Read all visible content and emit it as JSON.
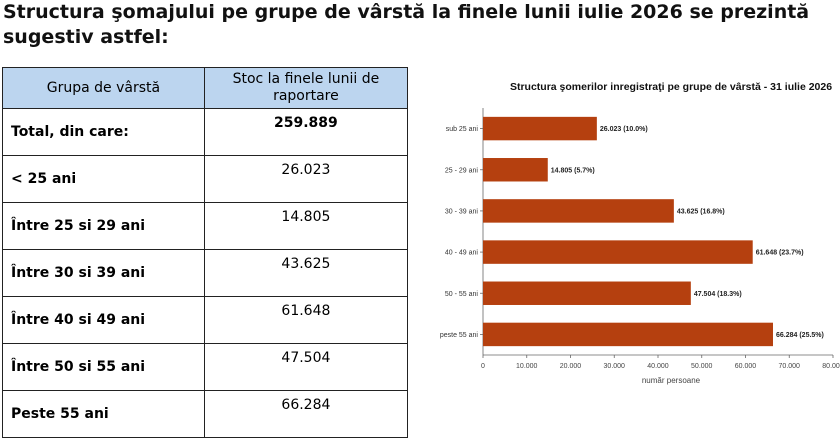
{
  "heading": "Structura şomajului pe grupe de vârstă la finele lunii iulie 2026 se prezintă sugestiv astfel:",
  "table": {
    "headers": [
      "Grupa de vârstă",
      "Stoc la finele lunii de raportare"
    ],
    "rows": [
      {
        "label": "Total, din care:",
        "value": "259.889"
      },
      {
        "label": "< 25 ani",
        "value": "26.023"
      },
      {
        "label": "Între 25 si 29 ani",
        "value": "14.805"
      },
      {
        "label": "Între 30 si 39 ani",
        "value": "43.625"
      },
      {
        "label": "Între 40 si 49 ani",
        "value": "61.648"
      },
      {
        "label": "Între 50 si 55 ani",
        "value": "47.504"
      },
      {
        "label": "Peste 55 ani",
        "value": "66.284"
      }
    ]
  },
  "chart_data": {
    "type": "bar",
    "orientation": "horizontal",
    "title": "Structura şomerilor inregistraţi pe grupe de vârstă - 31 iulie 2026",
    "xlabel": "număr persoane",
    "ylabel": "",
    "categories": [
      "sub 25 ani",
      "25 - 29 ani",
      "30 - 39 ani",
      "40 - 49 ani",
      "50 - 55 ani",
      "peste 55 ani"
    ],
    "values": [
      26023,
      14805,
      43625,
      61648,
      47504,
      66284
    ],
    "data_labels": [
      "26.023 (10.0%)",
      "14.805 (5.7%)",
      "43.625 (16.8%)",
      "61.648 (23.7%)",
      "47.504 (18.3%)",
      "66.284 (25.5%)"
    ],
    "xlim": [
      0,
      80000
    ],
    "xticks": [
      0,
      10000,
      20000,
      30000,
      40000,
      50000,
      60000,
      70000,
      80000
    ],
    "xtick_labels": [
      "0",
      "10.000",
      "20.000",
      "30.000",
      "40.000",
      "50.000",
      "60.000",
      "70.000",
      "80.000"
    ],
    "bar_color": "#b5400f",
    "grid": false,
    "legend": "none"
  }
}
